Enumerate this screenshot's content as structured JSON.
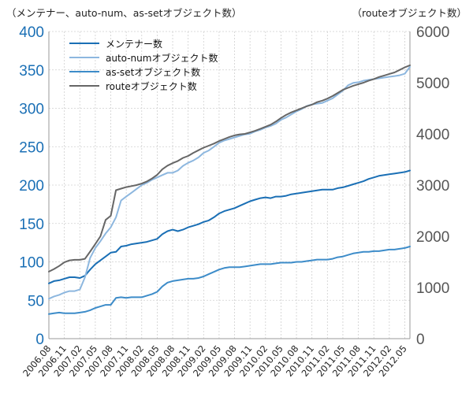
{
  "titles": {
    "left": "（メンテナー、auto-num、as-setオブジェクト数）",
    "right": "（routeオブジェクト数）"
  },
  "chart_data": {
    "type": "line",
    "x": [
      "2006.08",
      "2006.09",
      "2006.10",
      "2006.11",
      "2006.12",
      "2007.01",
      "2007.02",
      "2007.03",
      "2007.04",
      "2007.05",
      "2007.06",
      "2007.07",
      "2007.08",
      "2007.09",
      "2007.10",
      "2007.11",
      "2007.12",
      "2008.01",
      "2008.02",
      "2008.03",
      "2008.04",
      "2008.05",
      "2008.06",
      "2008.07",
      "2008.08",
      "2008.09",
      "2008.10",
      "2008.11",
      "2008.12",
      "2009.01",
      "2009.02",
      "2009.03",
      "2009.04",
      "2009.05",
      "2009.06",
      "2009.07",
      "2009.08",
      "2009.09",
      "2009.10",
      "2009.11",
      "2009.12",
      "2010.01",
      "2010.02",
      "2010.03",
      "2010.04",
      "2010.05",
      "2010.06",
      "2010.07",
      "2010.08",
      "2010.09",
      "2010.10",
      "2010.11",
      "2010.12",
      "2011.01",
      "2011.02",
      "2011.03",
      "2011.04",
      "2011.05",
      "2011.06",
      "2011.07",
      "2011.08",
      "2011.09",
      "2011.10",
      "2011.11",
      "2011.12",
      "2012.01",
      "2012.02",
      "2012.03",
      "2012.04",
      "2012.05",
      "2012.06"
    ],
    "tick_labels": [
      "2006.08",
      "2006.11",
      "2007.02",
      "2007.05",
      "2007.08",
      "2007.11",
      "2008.02",
      "2008.05",
      "2008.08",
      "2008.11",
      "2009.02",
      "2009.05",
      "2009.08",
      "2009.11",
      "2010.02",
      "2010.05",
      "2010.08",
      "2010.11",
      "2011.02",
      "2011.05",
      "2011.08",
      "2011.11",
      "2012.02",
      "2012.05"
    ],
    "left_axis": {
      "min": 0,
      "max": 400,
      "ticks": [
        0,
        50,
        100,
        150,
        200,
        250,
        300,
        350,
        400
      ]
    },
    "right_axis": {
      "min": 0,
      "max": 6000,
      "ticks": [
        0,
        1000,
        2000,
        3000,
        4000,
        5000,
        6000
      ]
    },
    "grid": true,
    "legend_position": "top-left",
    "series": [
      {
        "name": "メンテナー数",
        "axis": "left",
        "color": "#1a6fb5",
        "values": [
          72,
          75,
          76,
          78,
          80,
          80,
          79,
          82,
          90,
          97,
          102,
          107,
          112,
          113,
          120,
          121,
          123,
          124,
          125,
          126,
          128,
          130,
          136,
          140,
          142,
          140,
          142,
          145,
          147,
          149,
          152,
          154,
          158,
          163,
          166,
          168,
          170,
          173,
          176,
          179,
          181,
          183,
          184,
          183,
          185,
          185,
          186,
          188,
          189,
          190,
          191,
          192,
          193,
          194,
          194,
          194,
          196,
          197,
          199,
          201,
          203,
          205,
          208,
          210,
          212,
          213,
          214,
          215,
          216,
          217,
          219
        ]
      },
      {
        "name": "auto-numオブジェクト数",
        "axis": "left",
        "color": "#8db7df",
        "values": [
          52,
          55,
          57,
          60,
          62,
          62,
          64,
          80,
          105,
          118,
          127,
          137,
          145,
          158,
          180,
          185,
          190,
          195,
          200,
          203,
          207,
          210,
          213,
          216,
          216,
          219,
          225,
          229,
          232,
          236,
          242,
          245,
          250,
          255,
          258,
          260,
          262,
          264,
          266,
          267,
          270,
          272,
          275,
          277,
          280,
          285,
          288,
          292,
          296,
          299,
          303,
          305,
          306,
          307,
          310,
          313,
          318,
          323,
          330,
          333,
          334,
          336,
          337,
          338,
          339,
          340,
          341,
          342,
          343,
          345,
          354
        ]
      },
      {
        "name": "as-setオブジェクト数",
        "axis": "left",
        "color": "#3d8cc9",
        "values": [
          32,
          33,
          34,
          33,
          33,
          33,
          34,
          35,
          37,
          40,
          42,
          44,
          44,
          53,
          54,
          53,
          54,
          54,
          54,
          56,
          58,
          61,
          68,
          73,
          75,
          76,
          77,
          78,
          78,
          79,
          81,
          84,
          87,
          90,
          92,
          93,
          93,
          93,
          94,
          95,
          96,
          97,
          97,
          97,
          98,
          99,
          99,
          99,
          100,
          100,
          101,
          102,
          103,
          103,
          103,
          104,
          106,
          107,
          109,
          111,
          112,
          113,
          113,
          114,
          114,
          115,
          116,
          116,
          117,
          118,
          120
        ]
      },
      {
        "name": "routeオブジェクト数",
        "axis": "right",
        "color": "#666666",
        "values": [
          1310,
          1360,
          1420,
          1490,
          1530,
          1540,
          1540,
          1560,
          1700,
          1850,
          2000,
          2320,
          2400,
          2900,
          2930,
          2960,
          2980,
          3000,
          3030,
          3070,
          3130,
          3200,
          3310,
          3380,
          3430,
          3470,
          3530,
          3570,
          3630,
          3680,
          3730,
          3770,
          3810,
          3860,
          3900,
          3940,
          3970,
          3990,
          4000,
          4030,
          4060,
          4100,
          4140,
          4180,
          4240,
          4310,
          4370,
          4420,
          4460,
          4500,
          4540,
          4570,
          4620,
          4650,
          4690,
          4740,
          4800,
          4860,
          4900,
          4940,
          4970,
          5000,
          5040,
          5070,
          5110,
          5140,
          5170,
          5200,
          5250,
          5300,
          5340
        ]
      }
    ]
  }
}
